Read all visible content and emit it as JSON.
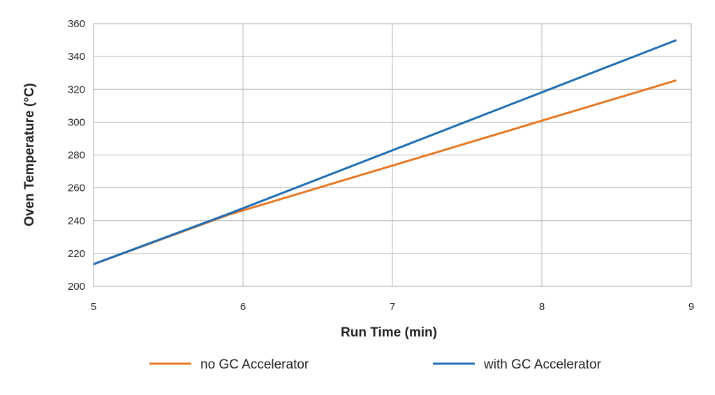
{
  "chart_data": {
    "type": "line",
    "title": "",
    "xlabel": "Run Time (min)",
    "ylabel": "Oven Temperature (°C)",
    "xlim": [
      5,
      9
    ],
    "ylim": [
      200,
      360
    ],
    "xticks": [
      "5",
      "6",
      "7",
      "8",
      "9"
    ],
    "yticks": [
      "200",
      "220",
      "240",
      "260",
      "280",
      "300",
      "320",
      "340",
      "360"
    ],
    "grid": true,
    "legend_position": "bottom",
    "series": [
      {
        "name": "no GC Accelerator",
        "color": "#e87722",
        "x": [
          5.0,
          5.9,
          8.9
        ],
        "y": [
          213.5,
          243.5,
          325.5
        ]
      },
      {
        "name": "with GC Accelerator",
        "color": "#1f6db3",
        "x": [
          5.0,
          5.9,
          8.9
        ],
        "y": [
          213.5,
          244.0,
          350.0
        ]
      }
    ]
  }
}
